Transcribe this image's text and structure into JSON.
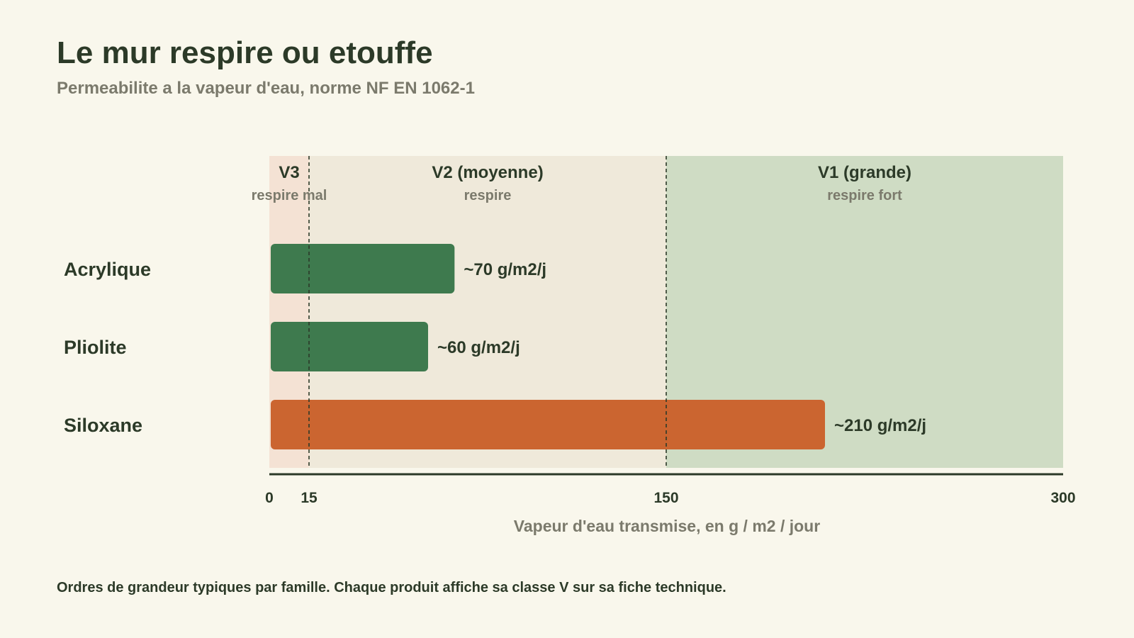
{
  "chart_data": {
    "type": "bar",
    "orientation": "horizontal",
    "title": "Le mur respire ou etouffe",
    "subtitle": "Permeabilite a la vapeur d'eau, norme NF EN 1062-1",
    "xlabel": "Vapeur d'eau transmise, en g / m2 / jour",
    "xlim": [
      0,
      300
    ],
    "x_ticks": [
      0,
      15,
      150,
      300
    ],
    "thresholds": [
      15,
      150
    ],
    "zones": [
      {
        "label": "V3",
        "sublabel": "respire mal",
        "from": 0,
        "to": 15,
        "color": "#f4e2d4"
      },
      {
        "label": "V2 (moyenne)",
        "sublabel": "respire",
        "from": 15,
        "to": 150,
        "color": "#efe9da"
      },
      {
        "label": "V1 (grande)",
        "sublabel": "respire fort",
        "from": 150,
        "to": 300,
        "color": "#cfdcc4"
      }
    ],
    "categories": [
      "Acrylique",
      "Pliolite",
      "Siloxane"
    ],
    "values": [
      70,
      60,
      210
    ],
    "value_labels": [
      "~70 g/m2/j",
      "~60 g/m2/j",
      "~210 g/m2/j"
    ],
    "bar_colors": [
      "#3e7a4e",
      "#3e7a4e",
      "#cb6530"
    ],
    "grid": false,
    "legend": "none"
  },
  "footnote": "Ordres de grandeur typiques par famille. Chaque produit affiche sa classe V sur sa fiche technique."
}
